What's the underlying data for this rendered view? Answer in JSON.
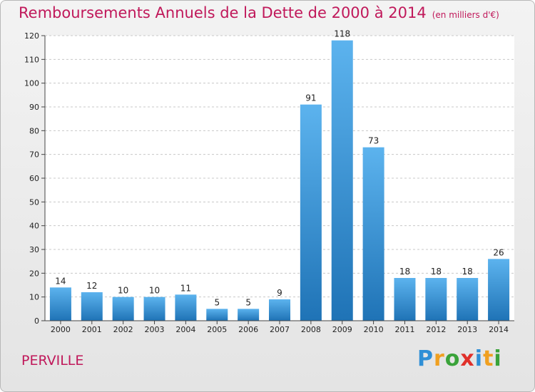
{
  "title": "Remboursements Annuels de la Dette de 2000 à 2014",
  "unit": "(en milliers d'€)",
  "commune": "PERVILLE",
  "brand": {
    "letters": [
      "P",
      "r",
      "o",
      "x",
      "i",
      "t",
      "i"
    ],
    "colors": [
      "#2f8fd6",
      "#f0a020",
      "#3aa33a",
      "#e0302a",
      "#2f8fd6",
      "#f0a020",
      "#3aa33a"
    ]
  },
  "colors": {
    "title": "#c0185a",
    "bar_top": "#5cb3ee",
    "bar_bottom": "#1f73b6"
  },
  "chart_data": {
    "type": "bar",
    "categories": [
      "2000",
      "2001",
      "2002",
      "2003",
      "2004",
      "2005",
      "2006",
      "2007",
      "2008",
      "2009",
      "2010",
      "2011",
      "2012",
      "2013",
      "2014"
    ],
    "values": [
      14,
      12,
      10,
      10,
      11,
      5,
      5,
      9,
      91,
      118,
      73,
      18,
      18,
      18,
      26
    ],
    "ylim": [
      0,
      120
    ],
    "yticks": [
      0,
      10,
      20,
      30,
      40,
      50,
      60,
      70,
      80,
      90,
      100,
      110,
      120
    ],
    "grid": "horizontal dashed",
    "data_labels": true
  }
}
